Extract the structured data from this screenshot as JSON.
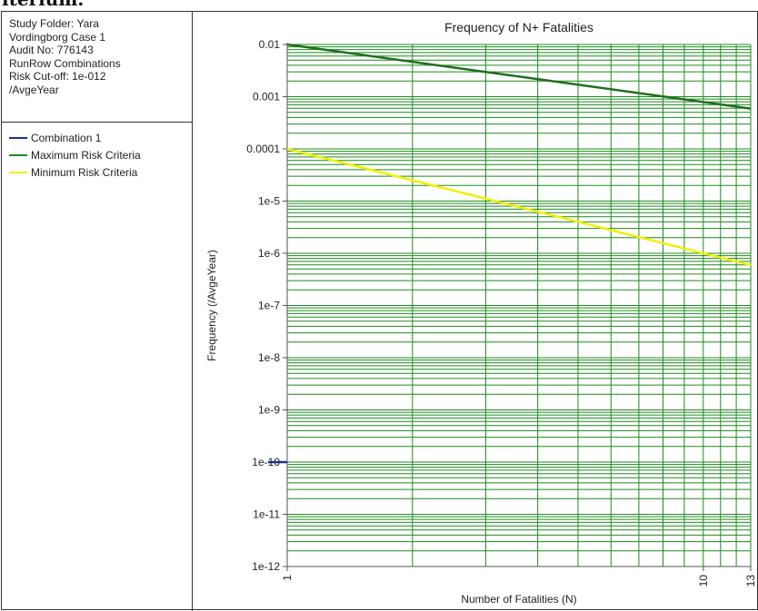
{
  "banner": {
    "text": "iterium."
  },
  "info_panel": {
    "lines": [
      "Study Folder: Yara",
      "Vordingborg Case 1",
      "Audit No: 776143",
      "RunRow Combinations",
      "Risk Cut-off: 1e-012",
      "/AvgeYear"
    ]
  },
  "legend": [
    {
      "label": "Combination 1",
      "color": "#1f2f8f"
    },
    {
      "label": "Maximum Risk Criteria",
      "color": "#1f8a1f"
    },
    {
      "label": "Minimum Risk Criteria",
      "color": "#f0f000"
    }
  ],
  "chart_data": {
    "type": "line",
    "title": "Frequency of N+ Fatalities",
    "xlabel": "Number of Fatalities (N)",
    "ylabel": "Frequency (/AvgeYear)",
    "x_scale": "log",
    "y_scale": "log",
    "xlim": [
      1,
      13
    ],
    "ylim": [
      1e-12,
      0.01
    ],
    "x_tick_labels": [
      {
        "value": 1,
        "label": "1"
      },
      {
        "value": 10,
        "label": "10"
      },
      {
        "value": 13,
        "label": "13"
      }
    ],
    "y_tick_labels": [
      {
        "value": 0.01,
        "label": "0.01"
      },
      {
        "value": 0.001,
        "label": "0.001"
      },
      {
        "value": 0.0001,
        "label": "0.0001"
      },
      {
        "value": 1e-05,
        "label": "1e-5"
      },
      {
        "value": 1e-06,
        "label": "1e-6"
      },
      {
        "value": 1e-07,
        "label": "1e-7"
      },
      {
        "value": 1e-08,
        "label": "1e-8"
      },
      {
        "value": 1e-09,
        "label": "1e-9"
      },
      {
        "value": 1e-10,
        "label": "1e-10"
      },
      {
        "value": 1e-11,
        "label": "1e-11"
      },
      {
        "value": 1e-12,
        "label": "1e-12"
      }
    ],
    "grid": true,
    "grid_color": "#1f8a1f",
    "series": [
      {
        "name": "Combination 1",
        "color": "#1f2f8f",
        "x": [
          0.9,
          1
        ],
        "y": [
          1e-10,
          1e-10
        ]
      },
      {
        "name": "Maximum Risk Criteria",
        "color": "#1f6f1f",
        "x": [
          1,
          13
        ],
        "y": [
          0.01,
          0.000592
        ]
      },
      {
        "name": "Minimum Risk Criteria",
        "color": "#f0f000",
        "x": [
          1,
          13
        ],
        "y": [
          0.0001,
          5.92e-07
        ]
      }
    ]
  }
}
